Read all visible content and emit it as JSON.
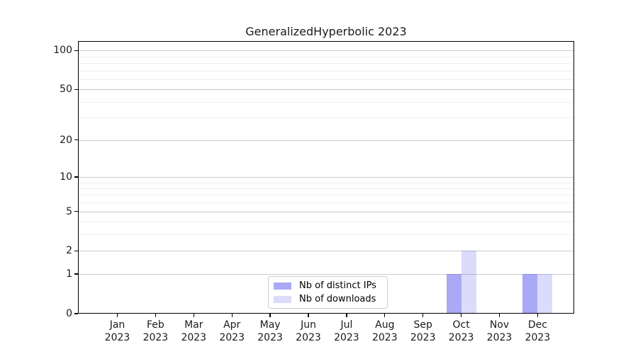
{
  "figure": {
    "title": "GeneralizedHyperbolic 2023"
  },
  "legend": {
    "items": [
      {
        "label": "Nb of distinct IPs",
        "color": "#a9a9f4",
        "fill": "rgba(98,98,236,0.55)"
      },
      {
        "label": "Nb of downloads",
        "color": "#dedefa",
        "fill": "rgba(110,110,240,0.25)"
      }
    ]
  },
  "chart_data": {
    "type": "bar",
    "title": "GeneralizedHyperbolic 2023",
    "categories": [
      "Jan 2023",
      "Feb 2023",
      "Mar 2023",
      "Apr 2023",
      "May 2023",
      "Jun 2023",
      "Jul 2023",
      "Aug 2023",
      "Sep 2023",
      "Oct 2023",
      "Nov 2023",
      "Dec 2023"
    ],
    "series": [
      {
        "name": "Nb of distinct IPs",
        "values": [
          0,
          0,
          0,
          0,
          0,
          0,
          0,
          0,
          0,
          1,
          0,
          1
        ],
        "color": "#a9a9f4",
        "fill": "rgba(98,98,236,0.55)"
      },
      {
        "name": "Nb of downloads",
        "values": [
          0,
          0,
          0,
          0,
          0,
          0,
          0,
          0,
          0,
          2,
          0,
          1
        ],
        "color": "#dedefa",
        "fill": "rgba(110,110,240,0.25)"
      }
    ],
    "xlabel": "",
    "ylabel": "",
    "y_scale": "log10(1+y)",
    "y_tick_labels": [
      100,
      50,
      20,
      10,
      5,
      2,
      1,
      0
    ],
    "y_minor_gridlines": [
      3,
      4,
      6,
      7,
      8,
      9,
      30,
      40,
      60,
      70,
      80,
      90
    ],
    "ylim": [
      0,
      118
    ],
    "grid": "horizontal",
    "legend_position": "lower center",
    "colors": {
      "major_grid": "#c9c9c9",
      "minor_grid": "#efefef",
      "axis": "#000000",
      "text": "#1a1a1a"
    }
  }
}
